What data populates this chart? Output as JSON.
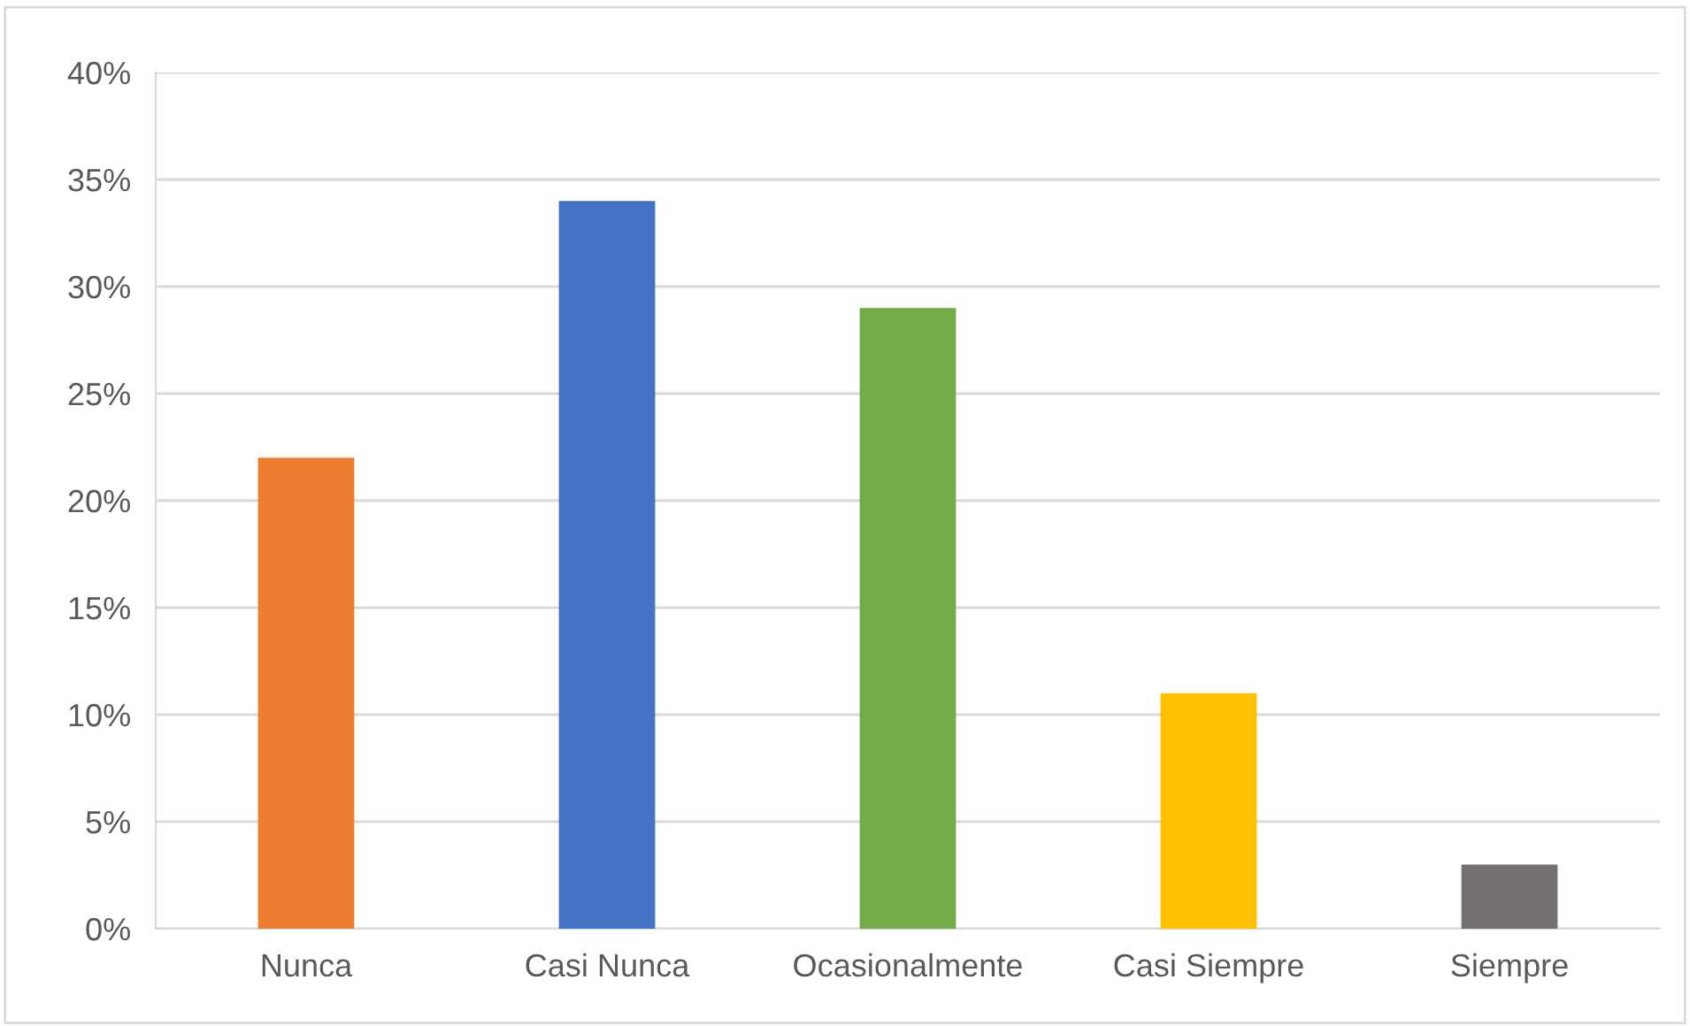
{
  "chart_data": {
    "type": "bar",
    "categories": [
      "Nunca",
      "Casi Nunca",
      "Ocasionalmente",
      "Casi Siempre",
      "Siempre"
    ],
    "values": [
      22,
      34,
      29,
      11,
      3
    ],
    "colors": [
      "#ed7d31",
      "#4472c4",
      "#70ad47",
      "#ffc000",
      "#767171"
    ],
    "ylim": [
      0,
      40
    ],
    "yticks": [
      {
        "value": 0,
        "label": "0%"
      },
      {
        "value": 5,
        "label": "5%"
      },
      {
        "value": 10,
        "label": "10%"
      },
      {
        "value": 15,
        "label": "15%"
      },
      {
        "value": 20,
        "label": "20%"
      },
      {
        "value": 25,
        "label": "25%"
      },
      {
        "value": 30,
        "label": "30%"
      },
      {
        "value": 35,
        "label": "35%"
      },
      {
        "value": 40,
        "label": "40%"
      }
    ],
    "grid": "y"
  }
}
